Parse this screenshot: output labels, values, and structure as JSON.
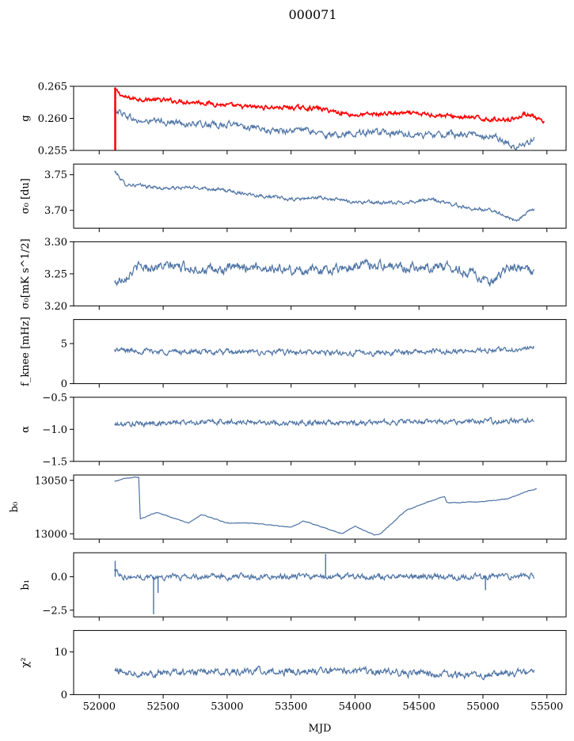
{
  "figure_title": "000071",
  "xlabel": "MJD",
  "x_ticks": [
    52000,
    52500,
    53000,
    53500,
    54000,
    54500,
    55000,
    55500
  ],
  "x_tick_labels": [
    "52000",
    "52500",
    "53000",
    "53500",
    "54000",
    "54500",
    "55000",
    "55500"
  ],
  "colors": {
    "primary": "#4c72a4",
    "secondary": "#ff0000",
    "axes": "#000000"
  },
  "chart_data": [
    {
      "type": "line",
      "ylabel": "g",
      "xlim": [
        51800,
        55650
      ],
      "ylim": [
        0.255,
        0.265
      ],
      "yticks": [
        0.255,
        0.26,
        0.265
      ],
      "ytick_labels": [
        "0.255",
        "0.260",
        "0.265"
      ],
      "series": [
        {
          "color": "#ff0000",
          "noise": 0.0004,
          "points": [
            [
              52120,
              0.2645
            ],
            [
              52200,
              0.2632
            ],
            [
              52500,
              0.2628
            ],
            [
              52800,
              0.2625
            ],
            [
              53100,
              0.2618
            ],
            [
              53400,
              0.2617
            ],
            [
              53700,
              0.2616
            ],
            [
              54000,
              0.2605
            ],
            [
              54300,
              0.2608
            ],
            [
              54600,
              0.2606
            ],
            [
              54900,
              0.2601
            ],
            [
              55100,
              0.2598
            ],
            [
              55250,
              0.26
            ],
            [
              55350,
              0.2608
            ],
            [
              55480,
              0.2592
            ]
          ]
        },
        {
          "color": "#4c72a4",
          "noise": 0.0006,
          "points": [
            [
              52120,
              0.2615
            ],
            [
              52300,
              0.2595
            ],
            [
              52500,
              0.2595
            ],
            [
              52800,
              0.259
            ],
            [
              53100,
              0.259
            ],
            [
              53300,
              0.258
            ],
            [
              53600,
              0.2582
            ],
            [
              53800,
              0.2573
            ],
            [
              54000,
              0.2578
            ],
            [
              54300,
              0.2576
            ],
            [
              54600,
              0.2574
            ],
            [
              54900,
              0.2575
            ],
            [
              55100,
              0.2572
            ],
            [
              55250,
              0.2553
            ],
            [
              55400,
              0.2568
            ]
          ]
        }
      ]
    },
    {
      "type": "line",
      "ylabel": "σ₀ [du]",
      "xlim": [
        51800,
        55650
      ],
      "ylim": [
        3.675,
        3.765
      ],
      "yticks": [
        3.7,
        3.75
      ],
      "ytick_labels": [
        "3.70",
        "3.75"
      ],
      "series": [
        {
          "color": "#4c72a4",
          "noise": 0.003,
          "points": [
            [
              52120,
              3.755
            ],
            [
              52200,
              3.737
            ],
            [
              52500,
              3.731
            ],
            [
              52800,
              3.732
            ],
            [
              53100,
              3.725
            ],
            [
              53500,
              3.715
            ],
            [
              53700,
              3.718
            ],
            [
              54000,
              3.712
            ],
            [
              54300,
              3.71
            ],
            [
              54600,
              3.715
            ],
            [
              54900,
              3.703
            ],
            [
              55100,
              3.699
            ],
            [
              55250,
              3.685
            ],
            [
              55400,
              3.702
            ]
          ]
        }
      ]
    },
    {
      "type": "line",
      "ylabel": "σ₀[mK s^1/2]",
      "xlim": [
        51800,
        55650
      ],
      "ylim": [
        3.2,
        3.3
      ],
      "yticks": [
        3.2,
        3.25,
        3.3
      ],
      "ytick_labels": [
        "3.20",
        "3.25",
        "3.30"
      ],
      "series": [
        {
          "color": "#4c72a4",
          "noise": 0.009,
          "points": [
            [
              52120,
              3.235
            ],
            [
              52300,
              3.26
            ],
            [
              52600,
              3.262
            ],
            [
              52900,
              3.255
            ],
            [
              53200,
              3.262
            ],
            [
              53500,
              3.255
            ],
            [
              53800,
              3.257
            ],
            [
              54100,
              3.265
            ],
            [
              54400,
              3.26
            ],
            [
              54700,
              3.262
            ],
            [
              54950,
              3.25
            ],
            [
              55050,
              3.23
            ],
            [
              55200,
              3.26
            ],
            [
              55400,
              3.255
            ]
          ]
        }
      ]
    },
    {
      "type": "line",
      "ylabel": "f_knee [mHz]",
      "xlim": [
        51800,
        55650
      ],
      "ylim": [
        0,
        8
      ],
      "yticks": [
        0,
        5
      ],
      "ytick_labels": [
        "0",
        "5"
      ],
      "series": [
        {
          "color": "#4c72a4",
          "noise": 0.4,
          "points": [
            [
              52120,
              4.2
            ],
            [
              52500,
              4.0
            ],
            [
              53000,
              3.9
            ],
            [
              53500,
              3.9
            ],
            [
              54000,
              3.8
            ],
            [
              54500,
              4.0
            ],
            [
              55000,
              4.1
            ],
            [
              55400,
              4.4
            ]
          ]
        }
      ]
    },
    {
      "type": "line",
      "ylabel": "α",
      "xlim": [
        51800,
        55650
      ],
      "ylim": [
        -1.5,
        -0.5
      ],
      "yticks": [
        -1.5,
        -1.0,
        -0.5
      ],
      "ytick_labels": [
        "−1.5",
        "−1.0",
        "−0.5"
      ],
      "series": [
        {
          "color": "#4c72a4",
          "noise": 0.05,
          "points": [
            [
              52120,
              -0.93
            ],
            [
              52500,
              -0.9
            ],
            [
              53000,
              -0.88
            ],
            [
              53500,
              -0.9
            ],
            [
              54000,
              -0.9
            ],
            [
              54500,
              -0.88
            ],
            [
              55000,
              -0.88
            ],
            [
              55400,
              -0.85
            ]
          ]
        }
      ]
    },
    {
      "type": "line",
      "ylabel": "b₀",
      "xlim": [
        51800,
        55650
      ],
      "ylim": [
        12995,
        13055
      ],
      "yticks": [
        13000,
        13050
      ],
      "ytick_labels": [
        "13000",
        "13050"
      ],
      "series": [
        {
          "color": "#4c72a4",
          "noise": 0.4,
          "points": [
            [
              52120,
              13049
            ],
            [
              52200,
              13052
            ],
            [
              52310,
              13053
            ],
            [
              52320,
              13014
            ],
            [
              52450,
              13020
            ],
            [
              52700,
              13010
            ],
            [
              52800,
              13018
            ],
            [
              53000,
              13010
            ],
            [
              53200,
              13010
            ],
            [
              53500,
              13006
            ],
            [
              53600,
              13012
            ],
            [
              53900,
              13000
            ],
            [
              54000,
              13007
            ],
            [
              54150,
              12999
            ],
            [
              54200,
              13000
            ],
            [
              54400,
              13022
            ],
            [
              54600,
              13031
            ],
            [
              54700,
              13035
            ],
            [
              54720,
              13029
            ],
            [
              55000,
              13030
            ],
            [
              55200,
              13033
            ],
            [
              55350,
              13040
            ],
            [
              55420,
              13042
            ]
          ]
        }
      ]
    },
    {
      "type": "line",
      "ylabel": "b₁",
      "xlim": [
        51800,
        55650
      ],
      "ylim": [
        -3.0,
        1.8
      ],
      "yticks": [
        -2.5,
        0.0
      ],
      "ytick_labels": [
        "−2.5",
        "0.0"
      ],
      "series": [
        {
          "color": "#4c72a4",
          "noise": 0.25,
          "points": [
            [
              52120,
              0.5
            ],
            [
              52200,
              0.0
            ],
            [
              52500,
              0.0
            ],
            [
              53000,
              0.0
            ],
            [
              53500,
              0.0
            ],
            [
              54000,
              0.0
            ],
            [
              54500,
              0.0
            ],
            [
              55000,
              0.0
            ],
            [
              55400,
              0.1
            ]
          ]
        }
      ],
      "spikes": [
        [
          52125,
          1.2
        ],
        [
          52425,
          -2.8
        ],
        [
          52460,
          -1.2
        ],
        [
          53770,
          1.7
        ],
        [
          55020,
          -1.0
        ]
      ]
    },
    {
      "type": "line",
      "ylabel": "χ²",
      "xlim": [
        51800,
        55650
      ],
      "ylim": [
        0,
        15
      ],
      "yticks": [
        0,
        10
      ],
      "ytick_labels": [
        "0",
        "10"
      ],
      "series": [
        {
          "color": "#4c72a4",
          "noise": 1.0,
          "points": [
            [
              52120,
              5.5
            ],
            [
              52500,
              5.0
            ],
            [
              53000,
              5.5
            ],
            [
              53500,
              5.5
            ],
            [
              54000,
              5.5
            ],
            [
              54500,
              5.0
            ],
            [
              55000,
              4.5
            ],
            [
              55400,
              5.5
            ]
          ]
        }
      ]
    }
  ]
}
